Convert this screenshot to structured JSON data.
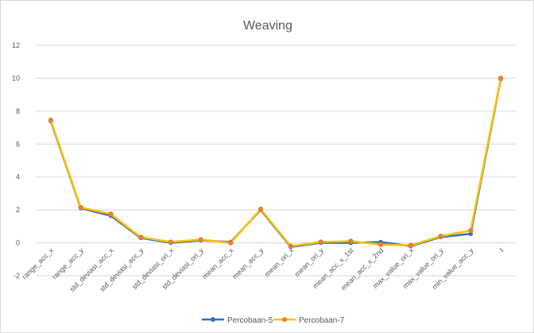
{
  "chart_data": {
    "type": "line",
    "title": "Weaving",
    "xlabel": "",
    "ylabel": "",
    "ylim": [
      -2,
      12
    ],
    "yticks": [
      -2,
      0,
      2,
      4,
      6,
      8,
      10,
      12
    ],
    "grid": "horizontal",
    "legend_position": "bottom",
    "categories": [
      "range_acc_x",
      "range_acc_y",
      "std_deviasi_acc_x",
      "std_deviasi_acc_y",
      "std_deviasi_ori_x",
      "std_deviasi_ori_y",
      "mean_acc_x",
      "mean_acc_y",
      "mean_ori_x",
      "mean_ori_y",
      "mean_acc_x_1st",
      "mean_acc_x_2nd",
      "max_value_ori_x",
      "max_value_ori_y",
      "min_value_acc_y",
      "t"
    ],
    "series": [
      {
        "name": "Percobaan-5",
        "color": "#2e75b6",
        "values": [
          7.4,
          2.1,
          1.65,
          0.3,
          0.0,
          0.15,
          0.05,
          2.0,
          -0.25,
          0.0,
          0.0,
          0.05,
          -0.2,
          0.35,
          0.55,
          9.95
        ]
      },
      {
        "name": "Percobaan-7",
        "color": "#ffc000",
        "values": [
          7.45,
          2.15,
          1.75,
          0.35,
          0.05,
          0.2,
          0.0,
          2.05,
          -0.2,
          0.05,
          0.1,
          -0.1,
          -0.15,
          0.4,
          0.75,
          10.0
        ]
      }
    ],
    "marker_color": "#ed7d31"
  }
}
